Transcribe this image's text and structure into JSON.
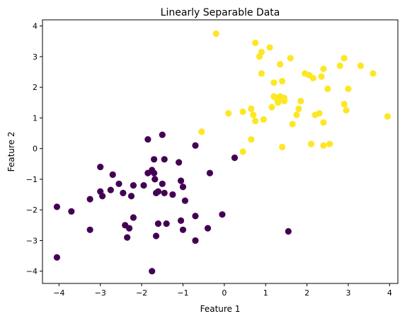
{
  "chart_data": {
    "type": "scatter",
    "title": "Linearly Separable Data",
    "xlabel": "Feature 1",
    "ylabel": "Feature 2",
    "xlim": [
      -4.4,
      4.2
    ],
    "ylim": [
      -4.4,
      4.2
    ],
    "xticks": [
      -4,
      -3,
      -2,
      -1,
      0,
      1,
      2,
      3,
      4
    ],
    "yticks": [
      -4,
      -3,
      -2,
      -1,
      0,
      1,
      2,
      3,
      4
    ],
    "grid": false,
    "colors": {
      "class0": "#440154",
      "class1": "#fde725"
    },
    "series": [
      {
        "class": 0,
        "color": "#440154",
        "points": [
          [
            -4.05,
            -1.9
          ],
          [
            -4.05,
            -3.55
          ],
          [
            -3.7,
            -2.05
          ],
          [
            -3.25,
            -2.65
          ],
          [
            -3.25,
            -1.65
          ],
          [
            -3.0,
            -0.6
          ],
          [
            -3.0,
            -1.4
          ],
          [
            -2.95,
            -1.55
          ],
          [
            -2.75,
            -1.35
          ],
          [
            -2.7,
            -0.85
          ],
          [
            -2.55,
            -1.15
          ],
          [
            -2.45,
            -1.45
          ],
          [
            -2.4,
            -2.5
          ],
          [
            -2.35,
            -2.9
          ],
          [
            -2.3,
            -2.6
          ],
          [
            -2.25,
            -1.55
          ],
          [
            -2.2,
            -1.2
          ],
          [
            -2.2,
            -2.25
          ],
          [
            -1.95,
            -1.2
          ],
          [
            -1.85,
            -0.8
          ],
          [
            -1.85,
            0.3
          ],
          [
            -1.75,
            -0.7
          ],
          [
            -1.7,
            -0.35
          ],
          [
            -1.7,
            -0.8
          ],
          [
            -1.68,
            -1.0
          ],
          [
            -1.65,
            -2.85
          ],
          [
            -1.65,
            -1.45
          ],
          [
            -1.6,
            -1.4
          ],
          [
            -1.6,
            -2.45
          ],
          [
            -1.5,
            -1.15
          ],
          [
            -1.5,
            0.45
          ],
          [
            -1.45,
            -0.35
          ],
          [
            -1.45,
            -1.45
          ],
          [
            -1.4,
            -2.45
          ],
          [
            -1.25,
            -1.5
          ],
          [
            -1.1,
            -0.45
          ],
          [
            -1.05,
            -1.05
          ],
          [
            -1.05,
            -2.35
          ],
          [
            -1.0,
            -1.25
          ],
          [
            -1.0,
            -2.65
          ],
          [
            -0.95,
            -1.7
          ],
          [
            -0.7,
            0.1
          ],
          [
            -0.7,
            -2.2
          ],
          [
            -0.7,
            -3.0
          ],
          [
            -0.4,
            -2.6
          ],
          [
            -0.35,
            -0.8
          ],
          [
            -0.05,
            -2.15
          ],
          [
            0.25,
            -0.3
          ],
          [
            1.55,
            -2.7
          ],
          [
            -1.75,
            -4.0
          ]
        ]
      },
      {
        "class": 1,
        "color": "#fde725",
        "points": [
          [
            -0.2,
            3.75
          ],
          [
            -0.55,
            0.55
          ],
          [
            0.1,
            1.15
          ],
          [
            0.45,
            1.2
          ],
          [
            0.45,
            -0.1
          ],
          [
            0.65,
            1.3
          ],
          [
            0.65,
            0.3
          ],
          [
            0.7,
            1.1
          ],
          [
            0.75,
            3.45
          ],
          [
            0.75,
            0.9
          ],
          [
            0.85,
            3.0
          ],
          [
            0.9,
            3.15
          ],
          [
            0.9,
            2.45
          ],
          [
            0.95,
            0.95
          ],
          [
            1.1,
            3.3
          ],
          [
            1.15,
            1.35
          ],
          [
            1.2,
            2.15
          ],
          [
            1.2,
            1.7
          ],
          [
            1.25,
            1.65
          ],
          [
            1.3,
            1.5
          ],
          [
            1.3,
            1.55
          ],
          [
            1.35,
            2.75
          ],
          [
            1.35,
            1.7
          ],
          [
            1.4,
            0.05
          ],
          [
            1.4,
            2.2
          ],
          [
            1.45,
            1.65
          ],
          [
            1.45,
            1.55
          ],
          [
            1.6,
            2.95
          ],
          [
            1.65,
            0.8
          ],
          [
            1.75,
            1.1
          ],
          [
            1.8,
            1.3
          ],
          [
            1.85,
            1.55
          ],
          [
            1.95,
            2.45
          ],
          [
            2.05,
            2.4
          ],
          [
            2.1,
            0.15
          ],
          [
            2.15,
            2.3
          ],
          [
            2.2,
            1.1
          ],
          [
            2.3,
            1.15
          ],
          [
            2.35,
            2.35
          ],
          [
            2.4,
            0.85
          ],
          [
            2.4,
            2.6
          ],
          [
            2.4,
            0.1
          ],
          [
            2.5,
            1.95
          ],
          [
            2.55,
            0.15
          ],
          [
            2.8,
            2.7
          ],
          [
            2.9,
            2.95
          ],
          [
            2.9,
            1.45
          ],
          [
            2.95,
            1.25
          ],
          [
            3.0,
            1.95
          ],
          [
            3.3,
            2.7
          ],
          [
            3.6,
            2.45
          ],
          [
            3.95,
            1.05
          ]
        ]
      }
    ]
  }
}
